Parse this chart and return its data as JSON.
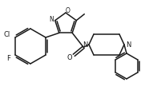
{
  "bg_color": "#ffffff",
  "line_color": "#1a1a1a",
  "line_width": 1.1,
  "figsize": [
    1.91,
    1.14
  ],
  "dpi": 100,
  "xlim": [
    0,
    191
  ],
  "ylim": [
    0,
    114
  ]
}
